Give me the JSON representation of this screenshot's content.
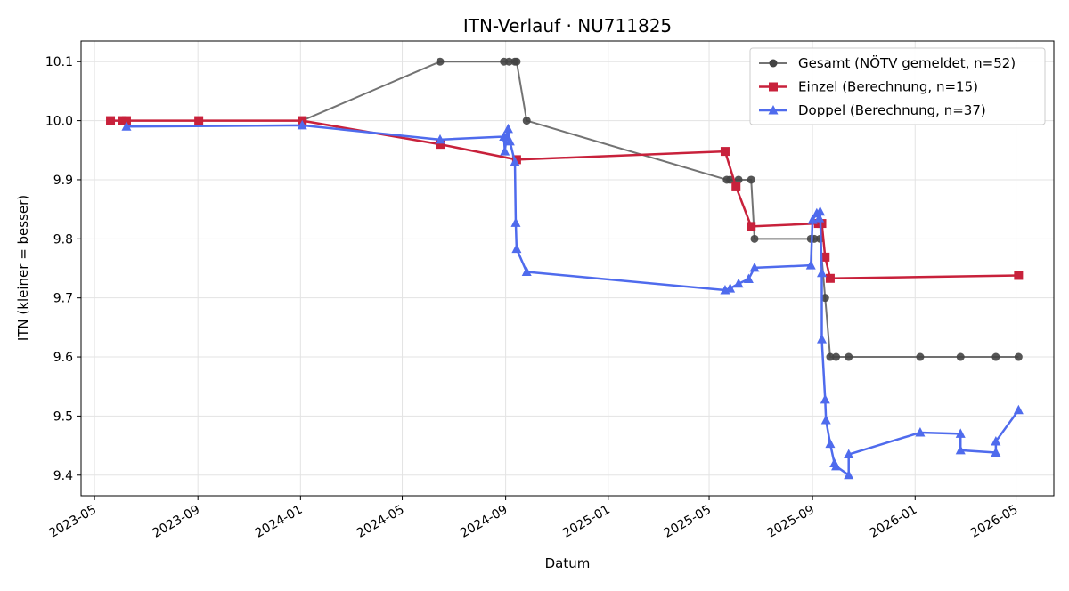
{
  "chart_data": {
    "type": "line",
    "title": "ITN-Verlauf · NU711825",
    "xlabel": "Datum",
    "ylabel": "ITN  (kleiner = besser)",
    "xlim": [
      "2023-04-15",
      "2026-06-15"
    ],
    "ylim": [
      9.365,
      10.135
    ],
    "x_ticks": [
      "2023-05-01",
      "2023-09-01",
      "2024-01-01",
      "2024-05-01",
      "2024-09-01",
      "2025-01-01",
      "2025-05-01",
      "2025-09-01",
      "2026-01-01",
      "2026-05-01"
    ],
    "x_tick_labels": [
      "2023-05",
      "2023-09",
      "2024-01",
      "2024-05",
      "2024-09",
      "2025-01",
      "2025-05",
      "2025-09",
      "2026-01",
      "2026-05"
    ],
    "y_ticks": [
      9.4,
      9.5,
      9.6,
      9.7,
      9.8,
      9.9,
      10.0,
      10.1
    ],
    "y_tick_labels": [
      "9.4",
      "9.5",
      "9.6",
      "9.7",
      "9.8",
      "9.9",
      "10.0",
      "10.1"
    ],
    "grid": true,
    "legend_position": "top-right",
    "series": [
      {
        "name": "Gesamt (NÖTV gemeldet, n=52)",
        "color": "#444444",
        "marker": "circle",
        "points": [
          [
            "2024-01-03",
            10.0
          ],
          [
            "2024-06-15",
            10.1
          ],
          [
            "2024-08-30",
            10.1
          ],
          [
            "2024-09-05",
            10.1
          ],
          [
            "2024-09-12",
            10.1
          ],
          [
            "2024-09-14",
            10.1
          ],
          [
            "2024-09-26",
            10.0
          ],
          [
            "2025-05-22",
            9.9
          ],
          [
            "2025-05-26",
            9.9
          ],
          [
            "2025-06-05",
            9.9
          ],
          [
            "2025-06-20",
            9.9
          ],
          [
            "2025-06-24",
            9.8
          ],
          [
            "2025-08-30",
            9.8
          ],
          [
            "2025-09-03",
            9.8
          ],
          [
            "2025-09-10",
            9.8
          ],
          [
            "2025-09-16",
            9.7
          ],
          [
            "2025-09-22",
            9.6
          ],
          [
            "2025-09-29",
            9.6
          ],
          [
            "2025-10-14",
            9.6
          ],
          [
            "2026-01-07",
            9.6
          ],
          [
            "2026-02-24",
            9.6
          ],
          [
            "2026-04-07",
            9.6
          ],
          [
            "2026-05-04",
            9.6
          ]
        ]
      },
      {
        "name": "Einzel (Berechnung, n=15)",
        "color": "#c8213b",
        "marker": "square",
        "points": [
          [
            "2023-05-20",
            10.0
          ],
          [
            "2023-06-03",
            10.0
          ],
          [
            "2023-06-08",
            10.0
          ],
          [
            "2023-09-02",
            10.0
          ],
          [
            "2024-01-03",
            10.0
          ],
          [
            "2024-06-15",
            9.96
          ],
          [
            "2024-09-14",
            9.934
          ],
          [
            "2025-05-20",
            9.948
          ],
          [
            "2025-06-02",
            9.888
          ],
          [
            "2025-06-20",
            9.821
          ],
          [
            "2025-09-08",
            9.826
          ],
          [
            "2025-09-12",
            9.826
          ],
          [
            "2025-09-16",
            9.769
          ],
          [
            "2025-09-22",
            9.733
          ],
          [
            "2026-05-04",
            9.738
          ]
        ]
      },
      {
        "name": "Doppel (Berechnung, n=37)",
        "color": "#4f6bed",
        "marker": "triangle",
        "points": [
          [
            "2023-06-08",
            9.99
          ],
          [
            "2024-01-03",
            9.992
          ],
          [
            "2024-06-15",
            9.968
          ],
          [
            "2024-08-30",
            9.973
          ],
          [
            "2024-08-31",
            9.948
          ],
          [
            "2024-09-02",
            9.972
          ],
          [
            "2024-09-04",
            9.986
          ],
          [
            "2024-09-06",
            9.965
          ],
          [
            "2024-09-12",
            9.93
          ],
          [
            "2024-09-13",
            9.827
          ],
          [
            "2024-09-14",
            9.783
          ],
          [
            "2024-09-26",
            9.744
          ],
          [
            "2025-05-20",
            9.713
          ],
          [
            "2025-05-26",
            9.716
          ],
          [
            "2025-06-05",
            9.724
          ],
          [
            "2025-06-17",
            9.732
          ],
          [
            "2025-06-24",
            9.751
          ],
          [
            "2025-08-30",
            9.755
          ],
          [
            "2025-09-01",
            9.832
          ],
          [
            "2025-09-06",
            9.843
          ],
          [
            "2025-09-09",
            9.835
          ],
          [
            "2025-09-10",
            9.846
          ],
          [
            "2025-09-12",
            9.742
          ],
          [
            "2025-09-12",
            9.63
          ],
          [
            "2025-09-16",
            9.528
          ],
          [
            "2025-09-17",
            9.493
          ],
          [
            "2025-09-22",
            9.453
          ],
          [
            "2025-09-27",
            9.42
          ],
          [
            "2025-09-29",
            9.415
          ],
          [
            "2025-10-14",
            9.4
          ],
          [
            "2025-10-14",
            9.435
          ],
          [
            "2026-01-07",
            9.472
          ],
          [
            "2026-02-24",
            9.47
          ],
          [
            "2026-02-24",
            9.442
          ],
          [
            "2026-04-07",
            9.438
          ],
          [
            "2026-04-07",
            9.457
          ],
          [
            "2026-05-04",
            9.51
          ]
        ]
      }
    ]
  }
}
